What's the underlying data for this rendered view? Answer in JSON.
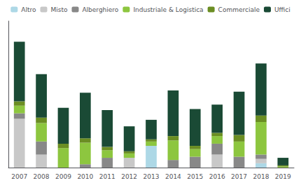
{
  "chart_data": {
    "type": "bar",
    "stacked": true,
    "categories": [
      "2007",
      "2008",
      "2009",
      "2010",
      "2011",
      "2012",
      "2013",
      "2014",
      "2015",
      "2016",
      "2017",
      "2018",
      "2019"
    ],
    "series": [
      {
        "name": "Altro",
        "color": "#ADD8E6",
        "values": [
          0.0,
          0.0,
          0.0,
          0.0,
          0.0,
          0.0,
          0.2,
          0.0,
          0.0,
          0.0,
          0.0,
          0.04,
          0.0
        ]
      },
      {
        "name": "Misto",
        "color": "#C8C8C8",
        "values": [
          0.45,
          0.12,
          0.0,
          0.0,
          0.0,
          0.09,
          0.0,
          0.0,
          0.0,
          0.12,
          0.0,
          0.04,
          0.0
        ]
      },
      {
        "name": "Alberghiero",
        "color": "#888888",
        "values": [
          0.05,
          0.12,
          0.0,
          0.03,
          0.09,
          0.0,
          0.0,
          0.07,
          0.1,
          0.1,
          0.1,
          0.04,
          0.0
        ]
      },
      {
        "name": "Industriale & Logistica",
        "color": "#8DC63F",
        "values": [
          0.07,
          0.17,
          0.18,
          0.2,
          0.07,
          0.04,
          0.04,
          0.18,
          0.07,
          0.07,
          0.14,
          0.3,
          0.01
        ]
      },
      {
        "name": "Commerciale",
        "color": "#6B8E23",
        "values": [
          0.04,
          0.05,
          0.04,
          0.04,
          0.03,
          0.02,
          0.02,
          0.04,
          0.03,
          0.03,
          0.06,
          0.06,
          0.01
        ]
      },
      {
        "name": "Uffici",
        "color": "#1A4A35",
        "values": [
          0.55,
          0.4,
          0.33,
          0.42,
          0.34,
          0.23,
          0.18,
          0.42,
          0.34,
          0.26,
          0.4,
          0.48,
          0.07
        ]
      }
    ],
    "ylim": [
      0,
      1.35
    ],
    "yticks": [],
    "grid": false,
    "legend": "top",
    "tick_labels": "x"
  }
}
